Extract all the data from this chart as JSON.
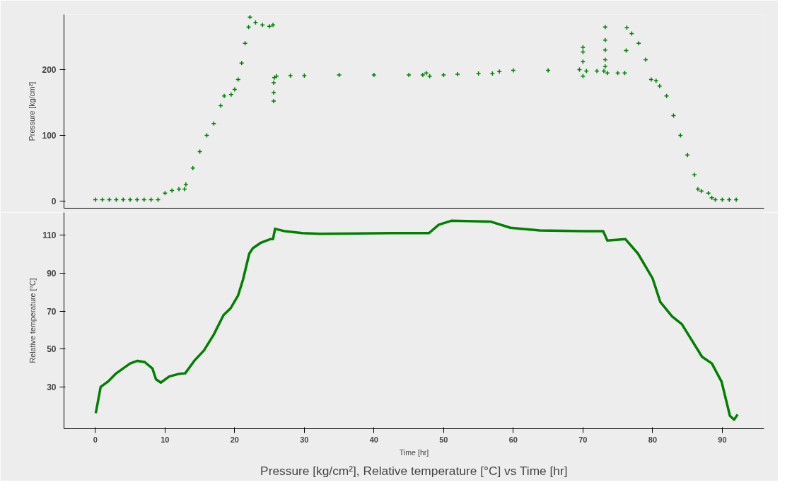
{
  "chart_data": [
    {
      "type": "scatter",
      "ylabel": "Pressure [kg/cm²]",
      "xlim": [
        -4.5,
        96
      ],
      "ylim": [
        -11,
        284
      ],
      "yticks": [
        0,
        100,
        200
      ],
      "tick_labels": "y",
      "marker": "cross",
      "grid": false,
      "series": [
        {
          "color": "#008000",
          "x": [
            0,
            1,
            2,
            3,
            4,
            5,
            6,
            7,
            8,
            9,
            10,
            11,
            12,
            12.8,
            13,
            14,
            15,
            16,
            17,
            18,
            18.5,
            19.5,
            20,
            20.5,
            21,
            21.5,
            22,
            22.2,
            23,
            24,
            25,
            25.5
          ],
          "values": [
            2,
            2,
            2,
            2,
            2,
            2,
            2,
            2,
            2,
            2,
            12,
            16,
            18,
            18,
            25,
            50,
            75,
            100,
            118,
            145,
            160,
            162,
            170,
            185,
            210,
            240,
            265,
            280,
            272,
            268,
            266,
            268
          ]
        },
        {
          "color": "#008000",
          "x": [
            25.6,
            25.6,
            25.6,
            25.7,
            26,
            28,
            30,
            35,
            40,
            45,
            47,
            47.5,
            48,
            50,
            52,
            55,
            57,
            58,
            60,
            65,
            69.5,
            70,
            70,
            70,
            70,
            70.5,
            72,
            73,
            73.2,
            73.2,
            73.2,
            73.2,
            73.2,
            73.5,
            75,
            76
          ],
          "values": [
            152,
            165,
            180,
            188,
            190,
            191,
            191,
            192,
            192,
            192,
            192,
            195,
            190,
            192,
            193,
            194,
            194,
            197,
            199,
            199,
            200,
            234,
            227,
            212,
            190,
            198,
            198,
            198,
            265,
            245,
            230,
            215,
            205,
            195,
            195,
            195
          ]
        },
        {
          "color": "#008000",
          "x": [
            76.2,
            76.3,
            77,
            78,
            79,
            79.8,
            80.5,
            81,
            82,
            83,
            84,
            85,
            86,
            86.5,
            87,
            88,
            88.5,
            89,
            90,
            91,
            92
          ],
          "values": [
            229,
            264,
            255,
            240,
            215,
            185,
            183,
            175,
            160,
            130,
            100,
            70,
            40,
            18,
            15,
            12,
            5,
            2,
            2,
            2,
            2
          ]
        }
      ]
    },
    {
      "type": "line",
      "title": "Pressure [kg/cm²], Relative temperature [°C] vs Time [hr]",
      "xlabel": "Time [hr]",
      "ylabel": "Relative temperature [°C]",
      "xlim": [
        -4.5,
        96
      ],
      "xticks": [
        0,
        10,
        20,
        30,
        40,
        50,
        60,
        70,
        80,
        90
      ],
      "ylim": [
        8,
        122
      ],
      "yticks": [
        30,
        50,
        70,
        90,
        110
      ],
      "grid": false,
      "series": [
        {
          "color": "#008000",
          "x": [
            0.06,
            0.76,
            1.8,
            2.9,
            5.0,
            6.05,
            7.1,
            8.2,
            8.7,
            9.4,
            10.6,
            12.0,
            12.9,
            14.2,
            15.6,
            17.0,
            18.4,
            19.4,
            20.5,
            21.2,
            22.1,
            22.6,
            23.7,
            25.1,
            25.5,
            25.8,
            27.2,
            29.7,
            32.2,
            42.6,
            47.9,
            49.3,
            51.1,
            56.7,
            59.6,
            63.8,
            70.1,
            72.9,
            73.5,
            76.1,
            77.9,
            80.0,
            81.1,
            82.8,
            84.2,
            87.1,
            88.5,
            89.9,
            91.1,
            91.7,
            92.2
          ],
          "values": [
            16.2,
            30,
            32.8,
            36.9,
            42.4,
            43.8,
            43.1,
            39.7,
            34.1,
            32.3,
            35.5,
            36.9,
            37.2,
            43.8,
            49.3,
            57.6,
            67.9,
            71.4,
            78.3,
            86.6,
            100.3,
            103.1,
            105.9,
            107.9,
            107.9,
            113.4,
            112.1,
            111.1,
            110.7,
            111.1,
            111.1,
            115.5,
            117.6,
            117.2,
            113.9,
            112.5,
            112.1,
            112.1,
            107.2,
            107.9,
            100.3,
            87.2,
            74.8,
            67.2,
            63.1,
            45.9,
            42.4,
            32.8,
            14.8,
            12.8,
            15.5
          ]
        }
      ]
    }
  ]
}
